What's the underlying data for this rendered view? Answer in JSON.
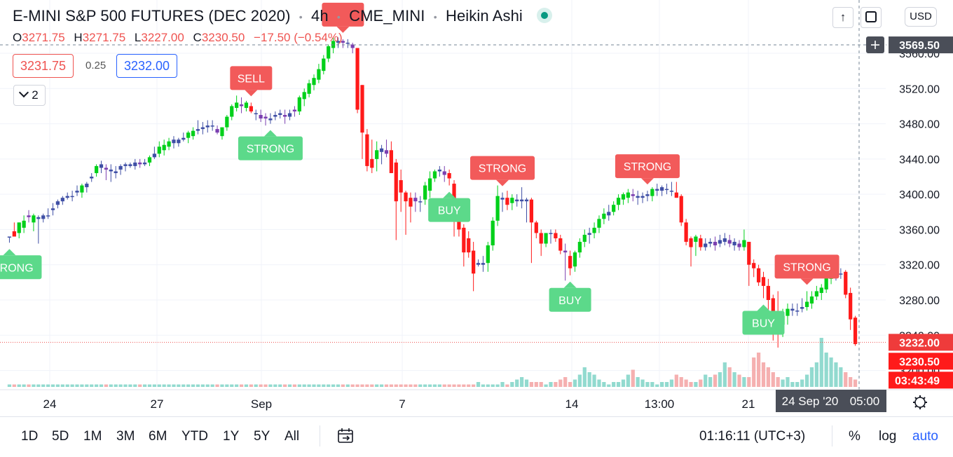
{
  "header": {
    "symbol": "E-MINI S&P 500 FUTURES (DEC 2020)",
    "interval": "4h",
    "exchange": "CME_MINI",
    "chart_style": "Heikin Ashi"
  },
  "ohlc": {
    "o_label": "O",
    "o_value": "3271.75",
    "h_label": "H",
    "h_value": "3271.75",
    "l_label": "L",
    "l_value": "3227.00",
    "c_label": "C",
    "c_value": "3230.50",
    "change": "−17.50 (−0.54%)"
  },
  "trade": {
    "sell_price": "3231.75",
    "spread": "0.25",
    "buy_price": "3232.00"
  },
  "indicators_toggle": {
    "count": "2"
  },
  "top_right": {
    "currency": "USD",
    "arrow_icon": "arrow-up-icon",
    "fullscreen_icon": "fullscreen-icon"
  },
  "price_axis": {
    "ticks": [
      "3560.00",
      "3520.00",
      "3480.00",
      "3440.00",
      "3400.00",
      "3360.00",
      "3320.00",
      "3280.00",
      "3240.00",
      "3200.00"
    ],
    "crosshair_label": "3569.50",
    "bid_label": "3232.00",
    "last_label": "3230.50",
    "countdown_label": "03:43:49"
  },
  "time_axis": {
    "labels": [
      "24",
      "27",
      "Sep",
      "7",
      "14",
      "13:00",
      "21"
    ],
    "crosshair_date": "24 Sep '20",
    "crosshair_time": "05:00"
  },
  "bottom": {
    "ranges": [
      "1D",
      "5D",
      "1M",
      "3M",
      "6M",
      "YTD",
      "1Y",
      "5Y",
      "All"
    ],
    "clock": "01:16:11 (UTC+3)",
    "percent": "%",
    "log": "log",
    "auto": "auto"
  },
  "colors": {
    "up": "#00d01a",
    "down": "#ff1a1a",
    "up_weak": "#3f4fa5",
    "down_weak": "#7b3fb0",
    "signal_buy": "#5cd98a",
    "signal_sell": "#f25a5a",
    "accent": "#2962ff"
  },
  "chart_data": {
    "type": "candlestick",
    "price_range": [
      3195,
      3580
    ],
    "grid": true,
    "candles": [
      [
        3352,
        3352,
        3345,
        3352
      ],
      [
        3358,
        3368,
        3352,
        3352
      ],
      [
        3356,
        3368,
        3350,
        3368
      ],
      [
        3362,
        3376,
        3356,
        3370
      ],
      [
        3376,
        3382,
        3368,
        3374
      ],
      [
        3368,
        3378,
        3358,
        3376
      ],
      [
        3372,
        3376,
        3344,
        3374
      ],
      [
        3372,
        3378,
        3368,
        3376
      ],
      [
        3376,
        3384,
        3372,
        3376
      ],
      [
        3382,
        3390,
        3376,
        3384
      ],
      [
        3388,
        3394,
        3384,
        3392
      ],
      [
        3392,
        3398,
        3388,
        3396
      ],
      [
        3396,
        3402,
        3394,
        3398
      ],
      [
        3398,
        3404,
        3392,
        3398
      ],
      [
        3402,
        3410,
        3398,
        3404
      ],
      [
        3402,
        3412,
        3396,
        3410
      ],
      [
        3408,
        3414,
        3402,
        3412
      ],
      [
        3418,
        3424,
        3414,
        3420
      ],
      [
        3424,
        3434,
        3420,
        3432
      ],
      [
        3430,
        3438,
        3424,
        3434
      ],
      [
        3430,
        3434,
        3416,
        3428
      ],
      [
        3426,
        3434,
        3414,
        3428
      ],
      [
        3424,
        3432,
        3418,
        3426
      ],
      [
        3428,
        3434,
        3422,
        3432
      ],
      [
        3432,
        3436,
        3426,
        3434
      ],
      [
        3432,
        3436,
        3430,
        3434
      ],
      [
        3432,
        3440,
        3428,
        3436
      ],
      [
        3436,
        3440,
        3430,
        3434
      ],
      [
        3434,
        3440,
        3432,
        3436
      ],
      [
        3436,
        3444,
        3432,
        3442
      ],
      [
        3442,
        3454,
        3440,
        3446
      ],
      [
        3446,
        3460,
        3442,
        3454
      ],
      [
        3450,
        3462,
        3444,
        3456
      ],
      [
        3454,
        3464,
        3450,
        3460
      ],
      [
        3458,
        3466,
        3452,
        3462
      ],
      [
        3458,
        3464,
        3454,
        3462
      ],
      [
        3462,
        3470,
        3460,
        3464
      ],
      [
        3464,
        3472,
        3458,
        3470
      ],
      [
        3466,
        3476,
        3462,
        3472
      ],
      [
        3472,
        3484,
        3468,
        3474
      ],
      [
        3474,
        3482,
        3468,
        3476
      ],
      [
        3476,
        3484,
        3470,
        3478
      ],
      [
        3478,
        3484,
        3472,
        3478
      ],
      [
        3474,
        3478,
        3468,
        3470
      ],
      [
        3466,
        3476,
        3462,
        3476
      ],
      [
        3476,
        3490,
        3472,
        3488
      ],
      [
        3488,
        3502,
        3484,
        3500
      ],
      [
        3498,
        3512,
        3494,
        3504
      ],
      [
        3502,
        3510,
        3492,
        3500
      ],
      [
        3498,
        3506,
        3494,
        3504
      ],
      [
        3500,
        3504,
        3492,
        3494
      ],
      [
        3492,
        3496,
        3484,
        3492
      ],
      [
        3490,
        3496,
        3482,
        3486
      ],
      [
        3488,
        3492,
        3478,
        3486
      ],
      [
        3484,
        3492,
        3480,
        3486
      ],
      [
        3488,
        3494,
        3484,
        3490
      ],
      [
        3490,
        3496,
        3486,
        3492
      ],
      [
        3490,
        3496,
        3480,
        3488
      ],
      [
        3488,
        3496,
        3484,
        3492
      ],
      [
        3496,
        3500,
        3488,
        3494
      ],
      [
        3494,
        3512,
        3490,
        3510
      ],
      [
        3508,
        3520,
        3500,
        3516
      ],
      [
        3514,
        3530,
        3510,
        3526
      ],
      [
        3524,
        3536,
        3518,
        3532
      ],
      [
        3530,
        3548,
        3526,
        3542
      ],
      [
        3540,
        3558,
        3536,
        3554
      ],
      [
        3554,
        3570,
        3550,
        3568
      ],
      [
        3566,
        3578,
        3560,
        3574
      ],
      [
        3572,
        3578,
        3566,
        3574
      ],
      [
        3574,
        3576,
        3566,
        3572
      ],
      [
        3572,
        3576,
        3566,
        3572
      ],
      [
        3570,
        3572,
        3560,
        3566
      ],
      [
        3566,
        3566,
        3492,
        3496
      ],
      [
        3524,
        3524,
        3440,
        3470
      ],
      [
        3468,
        3474,
        3426,
        3432
      ],
      [
        3440,
        3462,
        3424,
        3430
      ],
      [
        3440,
        3460,
        3426,
        3450
      ],
      [
        3448,
        3456,
        3434,
        3452
      ],
      [
        3450,
        3462,
        3442,
        3446
      ],
      [
        3450,
        3460,
        3424,
        3424
      ],
      [
        3436,
        3440,
        3348,
        3392
      ],
      [
        3416,
        3428,
        3380,
        3402
      ],
      [
        3402,
        3404,
        3354,
        3392
      ],
      [
        3396,
        3402,
        3368,
        3386
      ],
      [
        3396,
        3402,
        3380,
        3392
      ],
      [
        3392,
        3398,
        3380,
        3392
      ],
      [
        3394,
        3414,
        3388,
        3410
      ],
      [
        3404,
        3426,
        3396,
        3418
      ],
      [
        3418,
        3428,
        3414,
        3426
      ],
      [
        3426,
        3432,
        3420,
        3428
      ],
      [
        3426,
        3432,
        3414,
        3422
      ],
      [
        3424,
        3428,
        3410,
        3418
      ],
      [
        3412,
        3416,
        3352,
        3382
      ],
      [
        3380,
        3384,
        3352,
        3360
      ],
      [
        3362,
        3366,
        3318,
        3334
      ],
      [
        3350,
        3358,
        3328,
        3334
      ],
      [
        3336,
        3346,
        3290,
        3310
      ],
      [
        3320,
        3326,
        3318,
        3322
      ],
      [
        3320,
        3330,
        3312,
        3322
      ],
      [
        3322,
        3346,
        3312,
        3342
      ],
      [
        3342,
        3374,
        3336,
        3370
      ],
      [
        3370,
        3410,
        3364,
        3398
      ],
      [
        3394,
        3402,
        3380,
        3396
      ],
      [
        3396,
        3404,
        3382,
        3388
      ],
      [
        3390,
        3400,
        3382,
        3396
      ],
      [
        3392,
        3400,
        3386,
        3394
      ],
      [
        3392,
        3408,
        3384,
        3394
      ],
      [
        3392,
        3396,
        3368,
        3394
      ],
      [
        3394,
        3396,
        3322,
        3368
      ],
      [
        3368,
        3370,
        3350,
        3356
      ],
      [
        3356,
        3360,
        3330,
        3344
      ],
      [
        3344,
        3356,
        3340,
        3356
      ],
      [
        3356,
        3360,
        3344,
        3356
      ],
      [
        3356,
        3360,
        3346,
        3350
      ],
      [
        3350,
        3354,
        3332,
        3336
      ],
      [
        3336,
        3344,
        3302,
        3334
      ],
      [
        3330,
        3336,
        3308,
        3316
      ],
      [
        3318,
        3336,
        3312,
        3334
      ],
      [
        3334,
        3350,
        3328,
        3346
      ],
      [
        3346,
        3360,
        3340,
        3354
      ],
      [
        3354,
        3362,
        3344,
        3356
      ],
      [
        3356,
        3368,
        3350,
        3362
      ],
      [
        3362,
        3376,
        3356,
        3372
      ],
      [
        3372,
        3384,
        3366,
        3378
      ],
      [
        3376,
        3388,
        3370,
        3380
      ],
      [
        3380,
        3392,
        3376,
        3388
      ],
      [
        3388,
        3400,
        3382,
        3396
      ],
      [
        3394,
        3402,
        3388,
        3400
      ],
      [
        3396,
        3406,
        3390,
        3402
      ],
      [
        3400,
        3406,
        3392,
        3398
      ],
      [
        3396,
        3404,
        3388,
        3398
      ],
      [
        3396,
        3402,
        3390,
        3398
      ],
      [
        3398,
        3404,
        3392,
        3400
      ],
      [
        3398,
        3408,
        3392,
        3406
      ],
      [
        3404,
        3412,
        3398,
        3406
      ],
      [
        3404,
        3410,
        3398,
        3408
      ],
      [
        3406,
        3412,
        3400,
        3406
      ],
      [
        3404,
        3414,
        3398,
        3404
      ],
      [
        3402,
        3414,
        3396,
        3396
      ],
      [
        3398,
        3400,
        3364,
        3368
      ],
      [
        3368,
        3372,
        3342,
        3346
      ],
      [
        3350,
        3352,
        3318,
        3340
      ],
      [
        3346,
        3354,
        3330,
        3352
      ],
      [
        3350,
        3354,
        3336,
        3340
      ],
      [
        3340,
        3350,
        3336,
        3344
      ],
      [
        3344,
        3350,
        3340,
        3346
      ],
      [
        3346,
        3352,
        3336,
        3342
      ],
      [
        3344,
        3354,
        3340,
        3348
      ],
      [
        3346,
        3356,
        3342,
        3350
      ],
      [
        3348,
        3354,
        3340,
        3344
      ],
      [
        3342,
        3350,
        3336,
        3346
      ],
      [
        3344,
        3348,
        3336,
        3340
      ],
      [
        3340,
        3360,
        3336,
        3348
      ],
      [
        3346,
        3346,
        3296,
        3320
      ],
      [
        3322,
        3326,
        3306,
        3316
      ],
      [
        3316,
        3320,
        3296,
        3300
      ],
      [
        3306,
        3312,
        3282,
        3296
      ],
      [
        3296,
        3304,
        3266,
        3280
      ],
      [
        3282,
        3286,
        3234,
        3262
      ],
      [
        3264,
        3290,
        3226,
        3254
      ],
      [
        3252,
        3270,
        3238,
        3262
      ],
      [
        3262,
        3276,
        3252,
        3270
      ],
      [
        3268,
        3276,
        3262,
        3270
      ],
      [
        3268,
        3276,
        3262,
        3268
      ],
      [
        3270,
        3282,
        3266,
        3272
      ],
      [
        3272,
        3290,
        3268,
        3278
      ],
      [
        3276,
        3290,
        3270,
        3284
      ],
      [
        3284,
        3296,
        3280,
        3290
      ],
      [
        3288,
        3298,
        3280,
        3294
      ],
      [
        3292,
        3312,
        3288,
        3306
      ],
      [
        3304,
        3316,
        3298,
        3312
      ],
      [
        3310,
        3320,
        3302,
        3312
      ],
      [
        3310,
        3316,
        3304,
        3310
      ],
      [
        3312,
        3314,
        3282,
        3286
      ],
      [
        3288,
        3294,
        3246,
        3258
      ],
      [
        3260,
        3262,
        3228,
        3230
      ]
    ],
    "volume_scale": [
      0,
      40
    ],
    "volume": [
      1,
      1,
      1,
      1,
      1,
      1,
      1,
      1,
      1,
      1,
      1,
      1,
      1,
      1,
      1,
      1,
      1,
      1,
      1,
      1,
      1,
      1,
      1,
      1,
      1,
      1,
      1,
      1,
      1,
      1,
      1,
      1,
      1,
      1,
      1,
      1,
      1,
      1,
      1,
      1,
      1,
      1,
      1,
      1,
      1,
      1,
      1,
      1,
      1,
      1,
      1,
      1,
      1,
      1,
      1,
      1,
      1,
      1,
      1,
      1,
      1,
      1,
      1,
      1,
      1,
      1,
      1,
      1,
      1,
      1,
      1,
      1,
      1,
      1,
      1,
      1,
      1,
      1,
      1,
      1,
      1,
      1,
      1,
      1,
      1,
      1,
      1,
      1,
      1,
      1,
      1,
      1,
      1,
      1,
      1,
      1,
      1,
      2,
      1,
      1,
      1,
      1,
      2,
      1,
      2,
      3,
      4,
      3,
      2,
      2,
      2,
      1,
      2,
      2,
      3,
      4,
      2,
      3,
      5,
      8,
      6,
      5,
      3,
      2,
      1,
      2,
      2,
      3,
      5,
      7,
      4,
      3,
      2,
      2,
      1,
      2,
      2,
      3,
      5,
      4,
      3,
      2,
      2,
      3,
      5,
      4,
      5,
      6,
      10,
      8,
      6,
      5,
      4,
      4,
      12,
      14,
      10,
      8,
      6,
      4,
      3,
      4,
      2,
      2,
      3,
      5,
      8,
      10,
      20,
      14,
      12,
      10,
      8,
      6,
      4,
      3,
      2,
      3,
      4,
      5,
      4,
      6,
      8,
      12,
      14,
      16,
      18,
      13,
      10,
      8,
      6,
      4,
      2,
      1,
      3,
      8,
      14,
      20,
      25,
      28,
      30,
      22,
      18,
      14,
      10,
      8,
      6,
      5
    ],
    "signals": [
      {
        "label": "SELL",
        "type": "sell",
        "candle": 50
      },
      {
        "label": "STRONG",
        "type": "buy",
        "candle": 54
      },
      {
        "label": "STRONG",
        "type": "buy",
        "candle": 0
      },
      {
        "label": "BUY",
        "type": "buy",
        "candle": 91
      },
      {
        "label": "STRONG",
        "type": "sell",
        "candle": 102
      },
      {
        "label": "BUY",
        "type": "buy",
        "candle": 116
      },
      {
        "label": "STRONG",
        "type": "sell",
        "candle": 132
      },
      {
        "label": "STRONG",
        "type": "sell",
        "candle": 165
      },
      {
        "label": "BUY",
        "type": "buy",
        "candle": 156
      },
      {
        "label": "",
        "type": "sell",
        "candle": 69
      }
    ]
  }
}
